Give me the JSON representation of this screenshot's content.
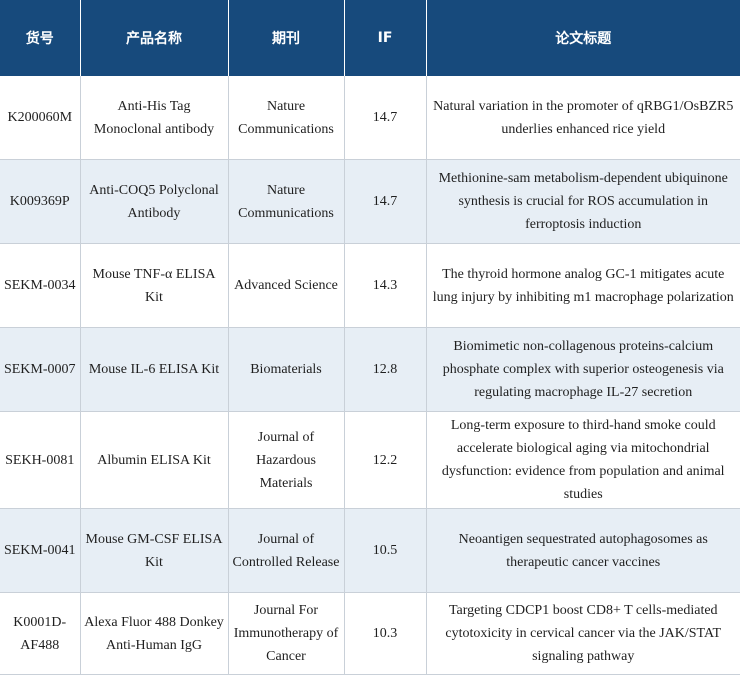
{
  "table": {
    "headers": [
      "货号",
      "产品名称",
      "期刊",
      "IF",
      "论文标题"
    ],
    "rows": [
      {
        "sku": "K200060M",
        "product": "Anti-His Tag Monoclonal antibody",
        "journal": "Nature Communications",
        "if": "14.7",
        "title": "Natural variation in the promoter of qRBG1/OsBZR5 underlies enhanced rice yield"
      },
      {
        "sku": "K009369P",
        "product": "Anti-COQ5 Polyclonal Antibody",
        "journal": "Nature Communications",
        "if": "14.7",
        "title": "Methionine-sam metabolism-dependent ubiquinone synthesis is crucial for ROS accumulation in ferroptosis induction"
      },
      {
        "sku": "SEKM-0034",
        "product": "Mouse TNF-α ELISA Kit",
        "journal": "Advanced Science",
        "if": "14.3",
        "title": "The thyroid hormone analog GC-1 mitigates acute lung injury by inhibiting m1 macrophage polarization"
      },
      {
        "sku": "SEKM-0007",
        "product": "Mouse IL-6 ELISA Kit",
        "journal": "Biomaterials",
        "if": "12.8",
        "title": "Biomimetic non-collagenous proteins-calcium phosphate complex with superior osteogenesis via regulating macrophage IL-27 secretion"
      },
      {
        "sku": "SEKH-0081",
        "product": "Albumin ELISA Kit",
        "journal": "Journal of Hazardous Materials",
        "if": "12.2",
        "title": "Long-term exposure to third-hand smoke could accelerate biological aging via mitochondrial dysfunction: evidence from population and animal studies"
      },
      {
        "sku": "SEKM-0041",
        "product": "Mouse GM-CSF ELISA Kit",
        "journal": "Journal of Controlled Release",
        "if": "10.5",
        "title": "Neoantigen sequestrated autophagosomes as therapeutic cancer vaccines"
      },
      {
        "sku": "K0001D-AF488",
        "product": "Alexa Fluor 488 Donkey Anti-Human IgG",
        "journal": "Journal For Immunotherapy of Cancer",
        "if": "10.3",
        "title": "Targeting CDCP1 boost CD8+ T cells-mediated cytotoxicity in cervical cancer via the JAK/STAT signaling pathway"
      }
    ]
  },
  "colors": {
    "header_bg": "#174a7c",
    "header_text": "#ffffff",
    "stripe_bg": "#e7eef5",
    "border": "#c9d0d8"
  }
}
